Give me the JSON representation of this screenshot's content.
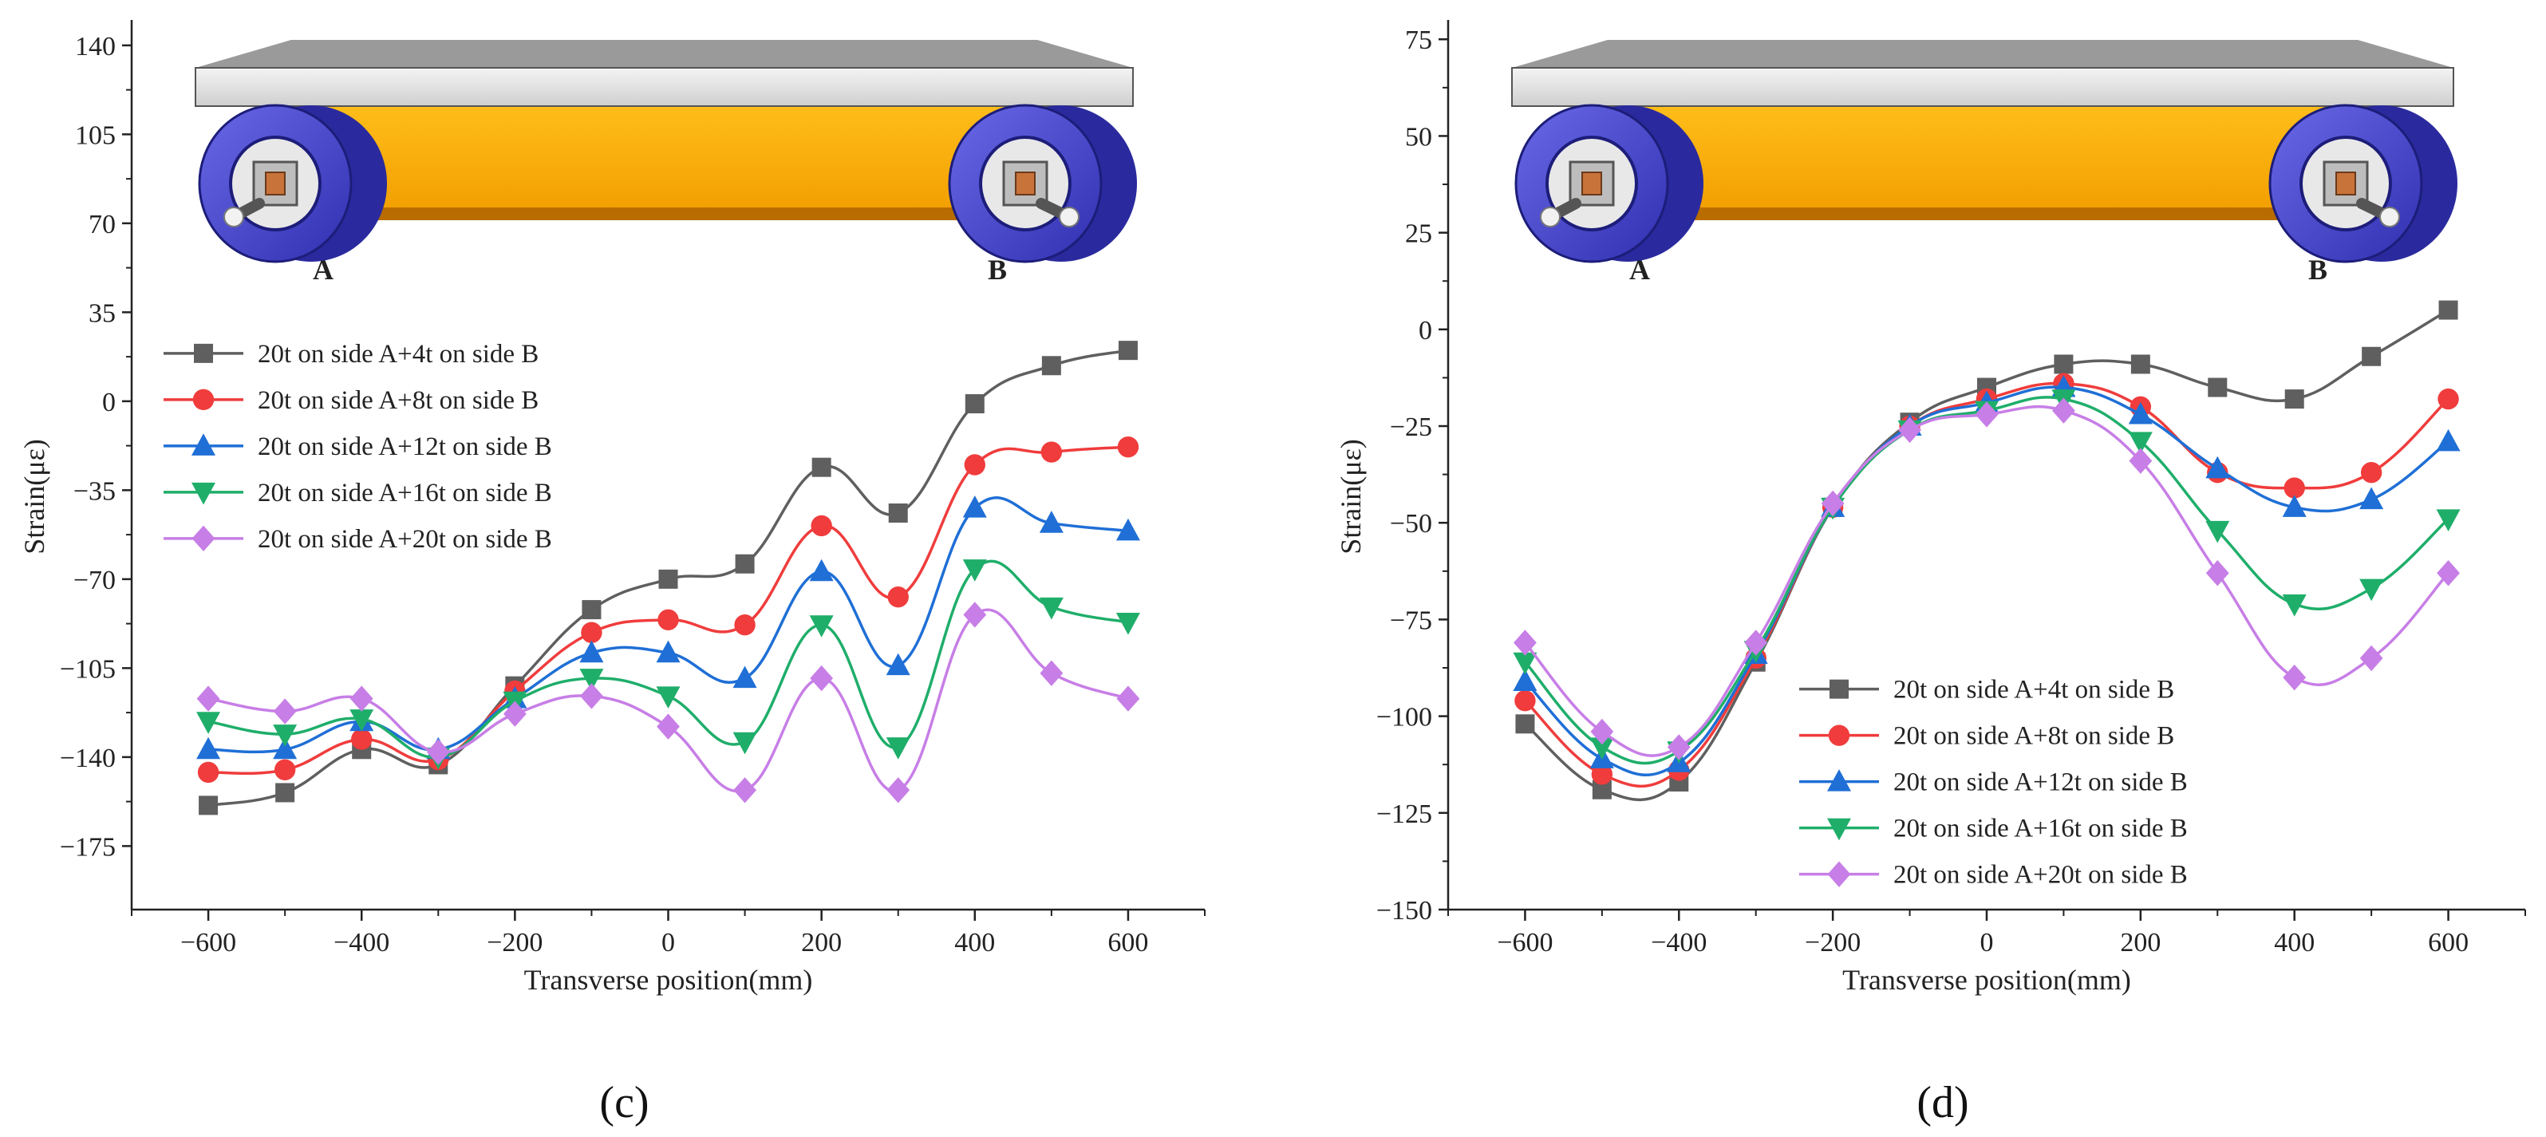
{
  "chart_data": [
    {
      "type": "line",
      "panel_label": "(c)",
      "xlabel": "Transverse position(mm)",
      "ylabel": "Strain(με)",
      "xlim": [
        -700,
        700
      ],
      "ylim": [
        -200,
        150
      ],
      "xticks": [
        -600,
        -400,
        -200,
        0,
        200,
        400,
        600
      ],
      "yticks": [
        140,
        105,
        70,
        35,
        0,
        -35,
        -70,
        -105,
        -140,
        -175
      ],
      "legend_position": "middle-left",
      "illustration_labels": [
        "A",
        "B"
      ],
      "x": [
        -600,
        -500,
        -400,
        -300,
        -200,
        -100,
        0,
        100,
        200,
        300,
        400,
        500,
        600
      ],
      "series": [
        {
          "name": "20t on side A+4t    on side B",
          "color": "#5f5f5f",
          "marker": "square",
          "values": [
            -159,
            -154,
            -137,
            -143,
            -112,
            -82,
            -70,
            -64,
            -26,
            -44,
            -1,
            14,
            20
          ]
        },
        {
          "name": "20t on side A+8t    on side B",
          "color": "#f03c3c",
          "marker": "circle",
          "values": [
            -146,
            -145,
            -133,
            -141,
            -114,
            -91,
            -86,
            -88,
            -49,
            -77,
            -25,
            -20,
            -18
          ]
        },
        {
          "name": "20t on side A+12t  on side B",
          "color": "#1f6fd6",
          "marker": "triangle-up",
          "values": [
            -137,
            -137,
            -126,
            -137,
            -117,
            -99,
            -99,
            -109,
            -67,
            -104,
            -42,
            -48,
            -51
          ]
        },
        {
          "name": "20t on side A+16t  on side B",
          "color": "#1fae6a",
          "marker": "triangle-down",
          "values": [
            -126,
            -131,
            -125,
            -140,
            -118,
            -109,
            -116,
            -134,
            -88,
            -136,
            -66,
            -81,
            -87
          ]
        },
        {
          "name": "20t on side A+20t  on side B",
          "color": "#c77ee6",
          "marker": "diamond",
          "values": [
            -117,
            -122,
            -117,
            -138,
            -123,
            -116,
            -128,
            -153,
            -109,
            -153,
            -84,
            -107,
            -117
          ]
        }
      ]
    },
    {
      "type": "line",
      "panel_label": "(d)",
      "xlabel": "Transverse position(mm)",
      "ylabel": "Strain(με)",
      "xlim": [
        -700,
        700
      ],
      "ylim": [
        -150,
        80
      ],
      "xticks": [
        -600,
        -400,
        -200,
        0,
        200,
        400,
        600
      ],
      "yticks": [
        75,
        50,
        25,
        0,
        -25,
        -50,
        -75,
        -100,
        -125,
        -150
      ],
      "legend_position": "bottom-right",
      "illustration_labels": [
        "A",
        "B"
      ],
      "x": [
        -600,
        -500,
        -400,
        -300,
        -200,
        -100,
        0,
        100,
        200,
        300,
        400,
        500,
        600
      ],
      "series": [
        {
          "name": "20t on side A+4t    on side B",
          "color": "#5f5f5f",
          "marker": "square",
          "values": [
            -102,
            -119,
            -117,
            -86,
            -46,
            -24,
            -15,
            -9,
            -9,
            -15,
            -18,
            -7,
            5
          ]
        },
        {
          "name": "20t on side A+8t    on side B",
          "color": "#f03c3c",
          "marker": "circle",
          "values": [
            -96,
            -115,
            -114,
            -85,
            -46,
            -25,
            -18,
            -14,
            -20,
            -37,
            -41,
            -37,
            -18
          ]
        },
        {
          "name": "20t on side A+12t  on side B",
          "color": "#1f6fd6",
          "marker": "triangle-up",
          "values": [
            -91,
            -111,
            -112,
            -84,
            -46,
            -25,
            -19,
            -15,
            -22,
            -36,
            -46,
            -44,
            -29
          ]
        },
        {
          "name": "20t on side A+16t  on side B",
          "color": "#1fae6a",
          "marker": "triangle-down",
          "values": [
            -86,
            -108,
            -109,
            -83,
            -46,
            -26,
            -21,
            -18,
            -29,
            -52,
            -71,
            -67,
            -49
          ]
        },
        {
          "name": "20t on side A+20t  on side B",
          "color": "#c77ee6",
          "marker": "diamond",
          "values": [
            -81,
            -104,
            -108,
            -81,
            -45,
            -26,
            -22,
            -21,
            -34,
            -63,
            -90,
            -85,
            -63
          ]
        }
      ]
    }
  ]
}
